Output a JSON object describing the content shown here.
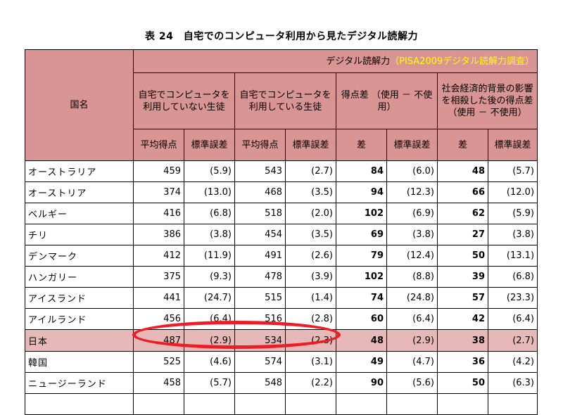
{
  "title": "表 24　自宅でのコンピュータ利用から見たデジタル読解力",
  "header": {
    "country": "国名",
    "digital": "デジタル読解力",
    "pisa": "（PISA2009デジタル読解力調査）",
    "group1": "自宅でコンピュータを利用していない生徒",
    "group2": "自宅でコンピュータを利用している生徒",
    "group3": "得点差\n（使用 － 不使用）",
    "group4": "社会経済的背景の影響を相殺した後の得点差\n（使用 － 不使用）",
    "avg": "平均得点",
    "se": "標準誤差",
    "diff": "差"
  },
  "rows": [
    {
      "name": "オーストラリア",
      "a1": "459",
      "s1": "(5.9)",
      "a2": "543",
      "s2": "(2.7)",
      "d": "84",
      "sd": "(6.0)",
      "d2": "48",
      "sd2": "(5.7)"
    },
    {
      "name": "オーストリア",
      "a1": "374",
      "s1": "(13.0)",
      "a2": "468",
      "s2": "(3.5)",
      "d": "94",
      "sd": "(12.3)",
      "d2": "66",
      "sd2": "(12.0)"
    },
    {
      "name": "ベルギー",
      "a1": "416",
      "s1": "(6.8)",
      "a2": "518",
      "s2": "(2.0)",
      "d": "102",
      "sd": "(6.9)",
      "d2": "62",
      "sd2": "(5.9)"
    },
    {
      "name": "チリ",
      "a1": "386",
      "s1": "(3.8)",
      "a2": "454",
      "s2": "(3.5)",
      "d": "69",
      "sd": "(3.8)",
      "d2": "27",
      "sd2": "(3.8)"
    },
    {
      "name": "デンマーク",
      "a1": "412",
      "s1": "(11.9)",
      "a2": "491",
      "s2": "(2.6)",
      "d": "79",
      "sd": "(12.4)",
      "d2": "50",
      "sd2": "(13.1)"
    },
    {
      "name": "ハンガリー",
      "a1": "375",
      "s1": "(9.3)",
      "a2": "478",
      "s2": "(3.9)",
      "d": "102",
      "sd": "(8.8)",
      "d2": "39",
      "sd2": "(6.8)"
    },
    {
      "name": "アイスランド",
      "a1": "441",
      "s1": "(24.7)",
      "a2": "515",
      "s2": "(1.4)",
      "d": "74",
      "sd": "(24.8)",
      "d2": "57",
      "sd2": "(23.3)"
    },
    {
      "name": "アイルランド",
      "a1": "456",
      "s1": "(6.4)",
      "a2": "516",
      "s2": "(2.8)",
      "d": "60",
      "sd": "(6.4)",
      "d2": "42",
      "sd2": "(6.4)"
    },
    {
      "name": "日本",
      "a1": "487",
      "s1": "(2.9)",
      "a2": "534",
      "s2": "(2.3)",
      "d": "48",
      "sd": "(2.9)",
      "d2": "38",
      "sd2": "(2.7)"
    },
    {
      "name": "韓国",
      "a1": "525",
      "s1": "(4.6)",
      "a2": "574",
      "s2": "(3.1)",
      "d": "49",
      "sd": "(4.7)",
      "d2": "36",
      "sd2": "(4.2)"
    },
    {
      "name": "ニュージーランド",
      "a1": "458",
      "s1": "(5.7)",
      "a2": "548",
      "s2": "(2.2)",
      "d": "90",
      "sd": "(5.6)",
      "d2": "50",
      "sd2": "(6.3)"
    },
    {
      "name": "",
      "a1": "",
      "s1": "",
      "a2": "",
      "s2": "",
      "d": "",
      "sd": "",
      "d2": "",
      "sd2": ""
    }
  ],
  "colors": {
    "header_bg": "#d99594",
    "highlight_row": "#e6b9b8",
    "pisa_text": "#ffff00",
    "circle": "#ee1c24"
  }
}
